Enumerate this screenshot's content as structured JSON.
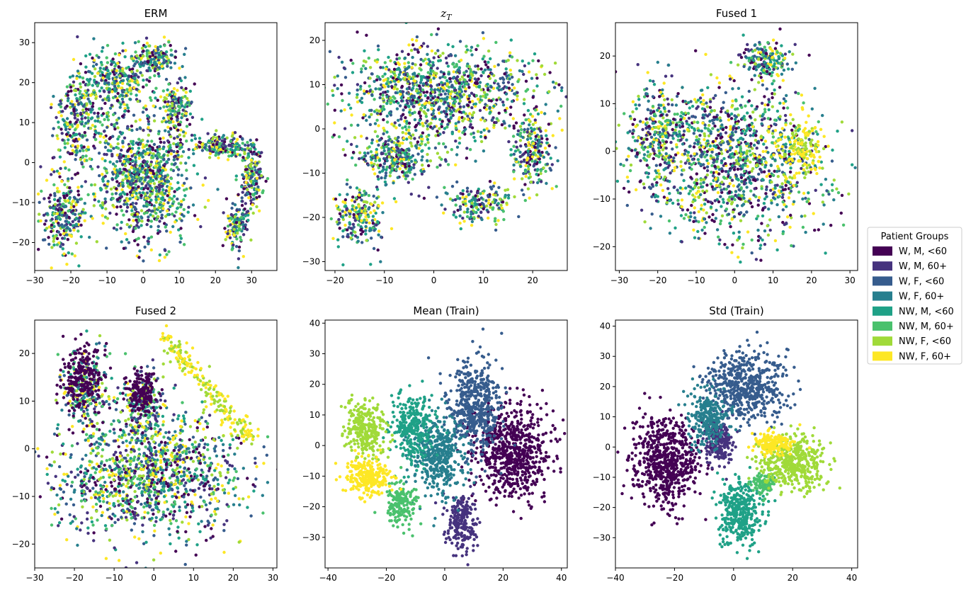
{
  "colors": {
    "W, M, <60": "#440154",
    "W, M, 60+": "#46337e",
    "W, F, <60": "#365c8d",
    "W, F, 60+": "#277f8e",
    "NW, M, <60": "#1fa187",
    "NW, M, 60+": "#4ac16d",
    "NW, F, <60": "#a0da39",
    "NW, F, 60+": "#fde725"
  },
  "legend": {
    "title": "Patient Groups",
    "entries": [
      "W, M, <60",
      "W, M, 60+",
      "W, F, <60",
      "W, F, 60+",
      "NW, M, <60",
      "NW, M, 60+",
      "NW, F, <60",
      "NW, F, 60+"
    ]
  },
  "chart_data": [
    {
      "type": "scatter",
      "title": "ERM",
      "title_is_math": false,
      "xlim": [
        -30,
        37
      ],
      "ylim": [
        -27,
        35
      ],
      "xticks": [
        -30,
        -20,
        -10,
        0,
        10,
        20,
        30
      ],
      "yticks": [
        -20,
        -10,
        0,
        10,
        20,
        30
      ],
      "mixed": true,
      "blobs": [
        {
          "x": 0,
          "y": -4,
          "rx": 13,
          "ry": 15,
          "n": 900
        },
        {
          "x": -22,
          "y": -13,
          "rx": 6,
          "ry": 10,
          "n": 250
        },
        {
          "x": -18,
          "y": 10,
          "rx": 7,
          "ry": 12,
          "n": 260
        },
        {
          "x": -8,
          "y": 20,
          "rx": 10,
          "ry": 8,
          "n": 320
        },
        {
          "x": 3,
          "y": 26,
          "rx": 6,
          "ry": 4,
          "n": 160
        },
        {
          "x": 9,
          "y": 13,
          "rx": 5,
          "ry": 7,
          "n": 180
        },
        {
          "x": 22,
          "y": 4,
          "rx": 7,
          "ry": 3,
          "n": 180
        },
        {
          "x": 30,
          "y": -4,
          "rx": 3,
          "ry": 8,
          "n": 180
        },
        {
          "x": 26,
          "y": -16,
          "rx": 3,
          "ry": 6,
          "n": 120
        }
      ]
    },
    {
      "type": "scatter",
      "title": "z_T",
      "title_is_math": true,
      "xlim": [
        -22,
        27
      ],
      "ylim": [
        -32,
        24
      ],
      "xticks": [
        -20,
        -10,
        0,
        10,
        20
      ],
      "yticks": [
        -30,
        -20,
        -10,
        0,
        10,
        20
      ],
      "mixed": true,
      "blobs": [
        {
          "x": 1,
          "y": 8,
          "rx": 19,
          "ry": 11,
          "n": 1100
        },
        {
          "x": -8,
          "y": -6,
          "rx": 8,
          "ry": 6,
          "n": 300
        },
        {
          "x": 20,
          "y": -5,
          "rx": 4,
          "ry": 8,
          "n": 220
        },
        {
          "x": -15,
          "y": -20,
          "rx": 5,
          "ry": 7,
          "n": 220
        },
        {
          "x": 9,
          "y": -17,
          "rx": 7,
          "ry": 4,
          "n": 180
        }
      ]
    },
    {
      "type": "scatter",
      "title": "Fused 1",
      "title_is_math": false,
      "xlim": [
        -31,
        32
      ],
      "ylim": [
        -25,
        27
      ],
      "xticks": [
        -30,
        -20,
        -10,
        0,
        10,
        20,
        30
      ],
      "yticks": [
        -20,
        -10,
        0,
        10,
        20
      ],
      "mixed": true,
      "blobs": [
        {
          "x": 0,
          "y": -2,
          "rx": 24,
          "ry": 16,
          "n": 1300
        },
        {
          "x": 8,
          "y": 19,
          "rx": 6,
          "ry": 4,
          "n": 180
        },
        {
          "x": -20,
          "y": 4,
          "rx": 7,
          "ry": 10,
          "n": 250
        }
      ],
      "yellow_patch": {
        "x": 17,
        "y": 0,
        "rx": 6,
        "ry": 6,
        "n": 160
      }
    },
    {
      "type": "scatter",
      "title": "Fused 2",
      "title_is_math": false,
      "xlim": [
        -30,
        31
      ],
      "ylim": [
        -25,
        27
      ],
      "xticks": [
        -30,
        -20,
        -10,
        0,
        10,
        20,
        30
      ],
      "yticks": [
        -20,
        -10,
        0,
        10,
        20
      ],
      "mixed": true,
      "blobs": [
        {
          "x": -2,
          "y": -5,
          "rx": 24,
          "ry": 13,
          "n": 1300
        },
        {
          "x": -17,
          "y": 13,
          "rx": 6,
          "ry": 8,
          "n": 260
        },
        {
          "x": -3,
          "y": 10,
          "rx": 5,
          "ry": 7,
          "n": 200
        }
      ],
      "purple_patches": [
        {
          "x": -18,
          "y": 15,
          "rx": 5,
          "ry": 6,
          "n": 200
        },
        {
          "x": -3,
          "y": 12,
          "rx": 4,
          "ry": 5,
          "n": 150
        }
      ],
      "diagonal_band": {
        "x0": 2,
        "y0": 24,
        "x1": 25,
        "y1": 2,
        "width": 3,
        "n": 220
      }
    },
    {
      "type": "scatter",
      "title": "Mean (Train)",
      "title_is_math": false,
      "xlim": [
        -41,
        42
      ],
      "ylim": [
        -40,
        41
      ],
      "xticks": [
        -40,
        -20,
        0,
        20,
        40
      ],
      "yticks": [
        -30,
        -20,
        -10,
        0,
        10,
        20,
        30,
        40
      ],
      "mixed": false,
      "clusters": [
        {
          "group": "W, M, <60",
          "x": 23,
          "y": -2,
          "rx": 13,
          "ry": 15,
          "n": 700
        },
        {
          "group": "W, M, 60+",
          "x": 6,
          "y": -25,
          "rx": 5,
          "ry": 9,
          "n": 220
        },
        {
          "group": "W, F, <60",
          "x": 10,
          "y": 12,
          "rx": 9,
          "ry": 16,
          "n": 500
        },
        {
          "group": "W, F, 60+",
          "x": -2,
          "y": -4,
          "rx": 9,
          "ry": 13,
          "n": 420
        },
        {
          "group": "NW, M, <60",
          "x": -11,
          "y": 6,
          "rx": 7,
          "ry": 12,
          "n": 300
        },
        {
          "group": "NW, M, 60+",
          "x": -15,
          "y": -19,
          "rx": 6,
          "ry": 7,
          "n": 180
        },
        {
          "group": "NW, F, <60",
          "x": -27,
          "y": 5,
          "rx": 7,
          "ry": 9,
          "n": 280
        },
        {
          "group": "NW, F, 60+",
          "x": -26,
          "y": -10,
          "rx": 8,
          "ry": 6,
          "n": 260
        }
      ]
    },
    {
      "type": "scatter",
      "title": "Std (Train)",
      "title_is_math": false,
      "xlim": [
        -40,
        42
      ],
      "ylim": [
        -40,
        42
      ],
      "xticks": [
        -40,
        -20,
        0,
        20,
        40
      ],
      "yticks": [
        -30,
        -20,
        -10,
        0,
        10,
        20,
        30,
        40
      ],
      "mixed": false,
      "clusters": [
        {
          "group": "W, M, <60",
          "x": -23,
          "y": -5,
          "rx": 11,
          "ry": 14,
          "n": 650
        },
        {
          "group": "W, M, 60+",
          "x": -5,
          "y": 2,
          "rx": 5,
          "ry": 7,
          "n": 200
        },
        {
          "group": "W, F, <60",
          "x": 4,
          "y": 20,
          "rx": 14,
          "ry": 12,
          "n": 550
        },
        {
          "group": "W, F, 60+",
          "x": -8,
          "y": 10,
          "rx": 7,
          "ry": 9,
          "n": 250
        },
        {
          "group": "NW, M, <60",
          "x": 2,
          "y": -22,
          "rx": 7,
          "ry": 10,
          "n": 380
        },
        {
          "group": "NW, M, 60+",
          "x": 10,
          "y": -12,
          "rx": 4,
          "ry": 4,
          "n": 100
        },
        {
          "group": "NW, F, <60",
          "x": 20,
          "y": -5,
          "rx": 11,
          "ry": 9,
          "n": 450
        },
        {
          "group": "NW, F, 60+",
          "x": 13,
          "y": 1,
          "rx": 6,
          "ry": 4,
          "n": 180
        }
      ]
    }
  ]
}
